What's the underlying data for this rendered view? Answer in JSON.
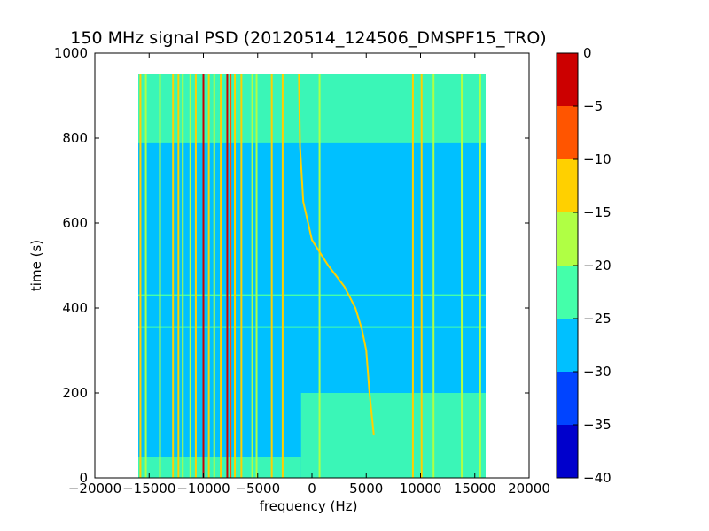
{
  "chart_data": {
    "type": "heatmap",
    "title": "150 MHz signal PSD (20120514_124506_DMSPF15_TRO)",
    "xlabel": "frequency (Hz)",
    "ylabel": "time (s)",
    "xlim": [
      -20000,
      20000
    ],
    "ylim": [
      0,
      1000
    ],
    "xticks": [
      -20000,
      -15000,
      -10000,
      -5000,
      0,
      5000,
      10000,
      15000,
      20000
    ],
    "xtick_labels": [
      "−20000",
      "−15000",
      "−10000",
      "−5000",
      "0",
      "5000",
      "10000",
      "15000",
      "20000"
    ],
    "yticks": [
      0,
      200,
      400,
      600,
      800,
      1000
    ],
    "ytick_labels": [
      "0",
      "200",
      "400",
      "600",
      "800",
      "1000"
    ],
    "data_extent": {
      "x": [
        -16000,
        16000
      ],
      "y": [
        0,
        950
      ]
    },
    "colorbar": {
      "levels": [
        -40,
        -35,
        -30,
        -25,
        -20,
        -15,
        -10,
        -5,
        0
      ],
      "tick_labels": [
        "−40",
        "−35",
        "−30",
        "−25",
        "−20",
        "−15",
        "−10",
        "−5",
        "0"
      ],
      "colors": [
        "#0000cc",
        "#0044ff",
        "#00c0ff",
        "#44ffaa",
        "#b0ff44",
        "#ffd000",
        "#ff5500",
        "#cc0000"
      ]
    },
    "background_level": -27,
    "regions": [
      {
        "x": [
          -16000,
          16000
        ],
        "y": [
          790,
          950
        ],
        "level": -24
      },
      {
        "x": [
          -1000,
          16000
        ],
        "y": [
          0,
          200
        ],
        "level": -22
      },
      {
        "x": [
          -16000,
          -1000
        ],
        "y": [
          0,
          50
        ],
        "level": -24
      }
    ],
    "vertical_lines": [
      {
        "freq": -15800,
        "y": [
          0,
          950
        ],
        "level": -12
      },
      {
        "freq": -15300,
        "y": [
          0,
          950
        ],
        "level": -18
      },
      {
        "freq": -14000,
        "y": [
          0,
          950
        ],
        "level": -20
      },
      {
        "freq": -12800,
        "y": [
          0,
          950
        ],
        "level": -15
      },
      {
        "freq": -12300,
        "y": [
          0,
          950
        ],
        "level": -12
      },
      {
        "freq": -11900,
        "y": [
          0,
          950
        ],
        "level": -18
      },
      {
        "freq": -11200,
        "y": [
          0,
          950
        ],
        "level": -18
      },
      {
        "freq": -10700,
        "y": [
          0,
          950
        ],
        "level": -15
      },
      {
        "freq": -10000,
        "y": [
          0,
          950
        ],
        "level": -3
      },
      {
        "freq": -9500,
        "y": [
          0,
          950
        ],
        "level": -15
      },
      {
        "freq": -9000,
        "y": [
          0,
          950
        ],
        "level": -18
      },
      {
        "freq": -8400,
        "y": [
          0,
          950
        ],
        "level": -12
      },
      {
        "freq": -7800,
        "y": [
          0,
          950
        ],
        "level": -3
      },
      {
        "freq": -7500,
        "y": [
          0,
          950
        ],
        "level": -8
      },
      {
        "freq": -7100,
        "y": [
          0,
          950
        ],
        "level": -12
      },
      {
        "freq": -6500,
        "y": [
          0,
          950
        ],
        "level": -15
      },
      {
        "freq": -5500,
        "y": [
          0,
          950
        ],
        "level": -18
      },
      {
        "freq": -5100,
        "y": [
          0,
          950
        ],
        "level": -20
      },
      {
        "freq": -3700,
        "y": [
          0,
          950
        ],
        "level": -15
      },
      {
        "freq": -2700,
        "y": [
          0,
          950
        ],
        "level": -12
      },
      {
        "freq": 700,
        "y": [
          0,
          950
        ],
        "level": -18
      },
      {
        "freq": 9300,
        "y": [
          0,
          950
        ],
        "level": -12
      },
      {
        "freq": 10100,
        "y": [
          0,
          950
        ],
        "level": -15
      },
      {
        "freq": 11200,
        "y": [
          0,
          950
        ],
        "level": -18
      },
      {
        "freq": 13800,
        "y": [
          0,
          950
        ],
        "level": -20
      },
      {
        "freq": 15500,
        "y": [
          0,
          950
        ],
        "level": -18
      }
    ],
    "drifting_signal": {
      "level": -12,
      "points": [
        {
          "t": 950,
          "f": -1200
        },
        {
          "t": 780,
          "f": -1100
        },
        {
          "t": 650,
          "f": -800
        },
        {
          "t": 560,
          "f": 0
        },
        {
          "t": 500,
          "f": 1500
        },
        {
          "t": 450,
          "f": 3000
        },
        {
          "t": 400,
          "f": 4000
        },
        {
          "t": 350,
          "f": 4600
        },
        {
          "t": 300,
          "f": 5000
        },
        {
          "t": 200,
          "f": 5300
        },
        {
          "t": 100,
          "f": 5700
        }
      ]
    },
    "horizontal_bands": [
      {
        "time": 355,
        "level": -22
      },
      {
        "time": 430,
        "level": -24
      },
      {
        "time": 790,
        "level": -23
      }
    ]
  }
}
